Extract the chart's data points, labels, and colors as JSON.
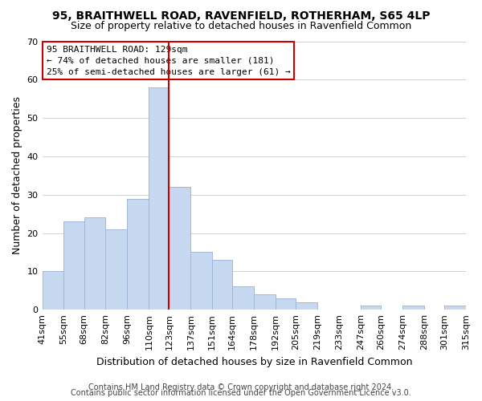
{
  "title": "95, BRAITHWELL ROAD, RAVENFIELD, ROTHERHAM, S65 4LP",
  "subtitle": "Size of property relative to detached houses in Ravenfield Common",
  "xlabel": "Distribution of detached houses by size in Ravenfield Common",
  "ylabel": "Number of detached properties",
  "bin_labels": [
    "41sqm",
    "55sqm",
    "68sqm",
    "82sqm",
    "96sqm",
    "110sqm",
    "123sqm",
    "137sqm",
    "151sqm",
    "164sqm",
    "178sqm",
    "192sqm",
    "205sqm",
    "219sqm",
    "233sqm",
    "247sqm",
    "260sqm",
    "274sqm",
    "288sqm",
    "301sqm",
    "315sqm"
  ],
  "bar_heights": [
    10,
    23,
    24,
    21,
    29,
    58,
    32,
    15,
    13,
    6,
    4,
    3,
    2,
    0,
    0,
    1,
    0,
    1,
    0,
    1
  ],
  "bar_color": "#c6d9f0",
  "bar_edge_color": "#a0b8d8",
  "highlight_line_index": 6,
  "highlight_line_color": "#cc0000",
  "ylim": [
    0,
    70
  ],
  "yticks": [
    0,
    10,
    20,
    30,
    40,
    50,
    60,
    70
  ],
  "annotation_title": "95 BRAITHWELL ROAD: 129sqm",
  "annotation_line1": "← 74% of detached houses are smaller (181)",
  "annotation_line2": "25% of semi-detached houses are larger (61) →",
  "annotation_box_color": "#ffffff",
  "annotation_box_edge": "#cc0000",
  "footer1": "Contains HM Land Registry data © Crown copyright and database right 2024.",
  "footer2": "Contains public sector information licensed under the Open Government Licence v3.0.",
  "title_fontsize": 10,
  "subtitle_fontsize": 9,
  "ylabel_fontsize": 9,
  "xlabel_fontsize": 9,
  "tick_fontsize": 8,
  "annotation_fontsize": 8,
  "footer_fontsize": 7
}
